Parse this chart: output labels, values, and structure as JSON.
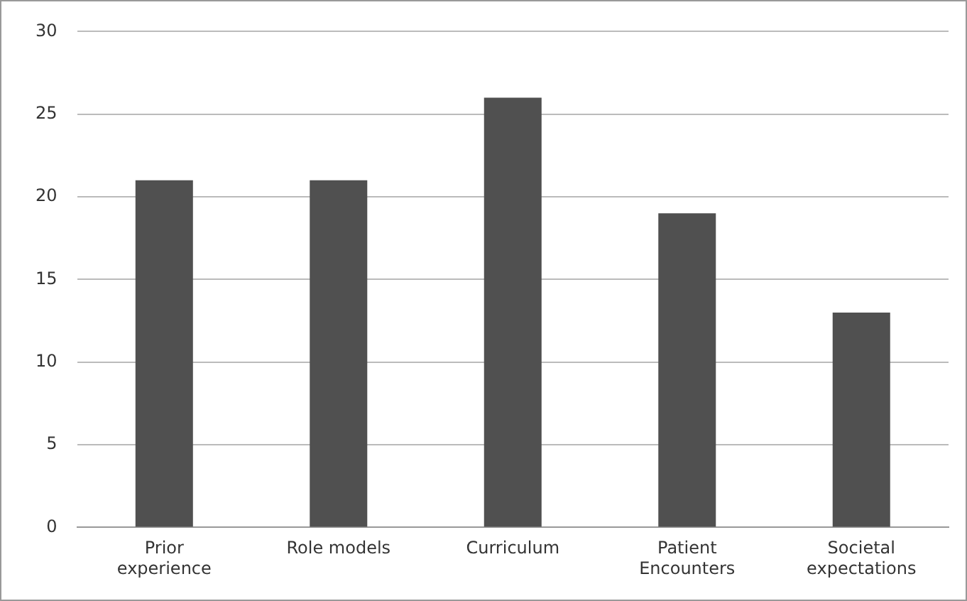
{
  "chart_data": {
    "type": "bar",
    "categories": [
      "Prior experience",
      "Role models",
      "Curriculum",
      "Patient Encounters",
      "Societal expectations"
    ],
    "values": [
      21,
      21,
      26,
      19,
      13
    ],
    "color": "#505050",
    "ylim": [
      0,
      30
    ],
    "yticks": [
      0,
      5,
      10,
      15,
      20,
      25,
      30
    ],
    "grid": "y"
  }
}
